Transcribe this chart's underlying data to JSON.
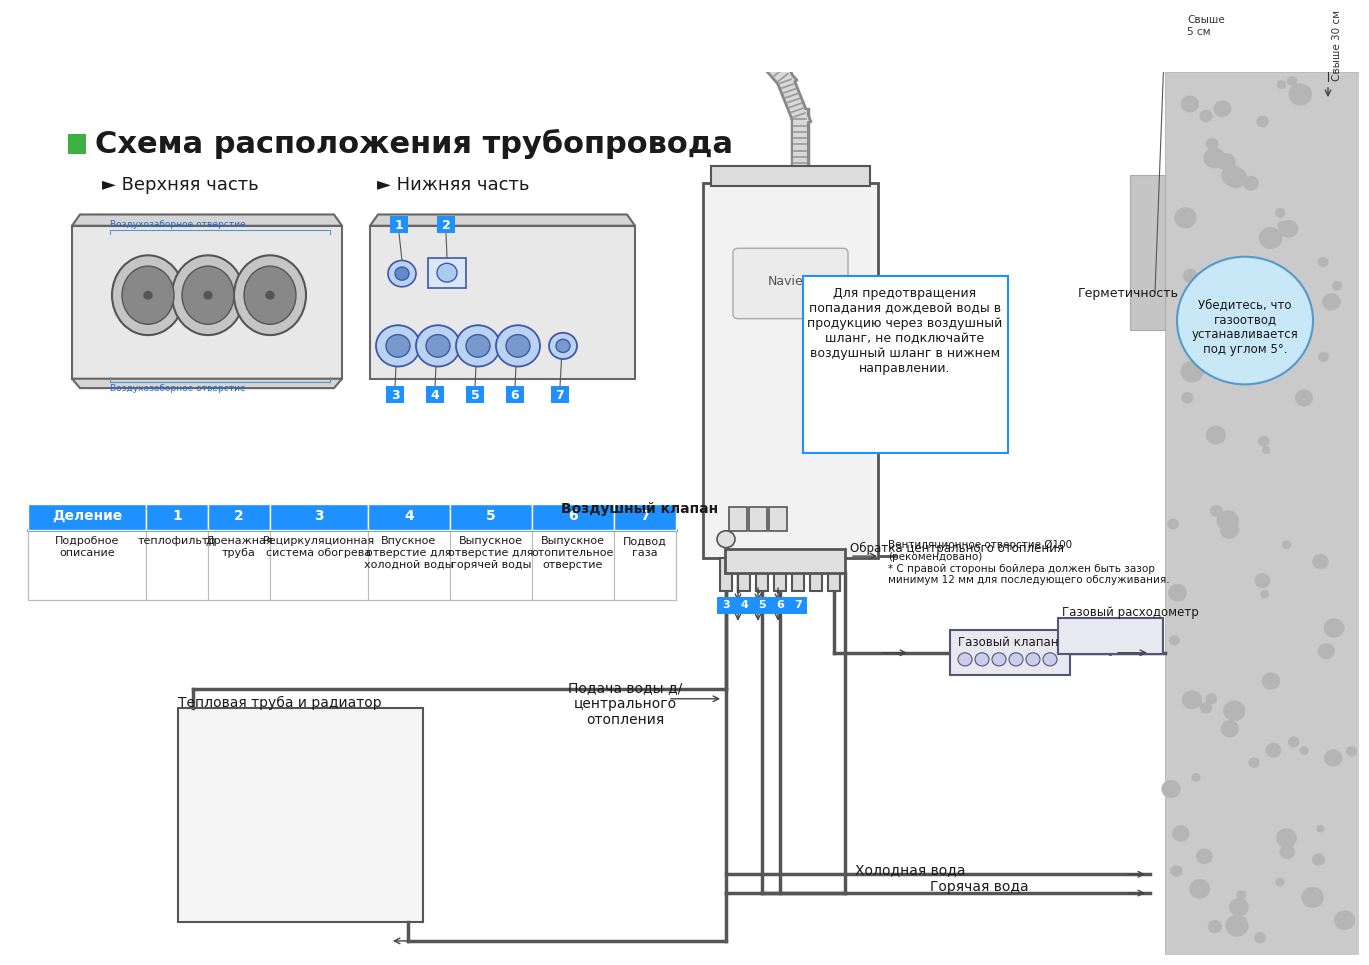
{
  "bg_color": "#ffffff",
  "title": "Схема расположения трубопровода",
  "green_square_color": "#3cb043",
  "title_color": "#1a1a1a",
  "section1": "► Верхняя часть",
  "section2": "► Нижняя часть",
  "table_headers": [
    "Деление",
    "1",
    "2",
    "3",
    "4",
    "5",
    "6",
    "7"
  ],
  "table_data": [
    "Подробное\nописание",
    "теплофильтр",
    "Дренажная\nтруба",
    "Рециркуляционная\nсистема обогрева",
    "Впускное\nотверстие для\nхолодной воды",
    "Выпускное\nотверстие для\nгорячей воды",
    "Выпускное\nотопительное\nотверстие",
    "Подвод\nгаза"
  ],
  "table_header_color": "#1e90ff",
  "label_air_valve": "Воздушный клапан",
  "label_return": "Обратка центрального отопления",
  "label_heat_pipe": "Тепловая труба и радиатор",
  "label_supply": "Подача воды д/\nцентрального\nотопления",
  "label_cold": "Холодная вода",
  "label_hot": "Горячая вода",
  "label_gas_meter": "Газовый расходометр",
  "label_gas_valve": "Газовый клапан",
  "label_seal": "Герметичность",
  "label_above5": "Свыше\n5 см",
  "label_above30": "Свыше 30 см",
  "label_vent": "Вентиляционное отверстие Ø100\n(рекомендовано)\n* С правой стороны бойлера должен быть зазор\nминимум 12 мм для последующего обслуживания.",
  "callout": "Убедитесь, что\nгазоотвод\nустанавливается\nпод углом 5°.",
  "warning": "Для предотвращения\nпопадания дождевой воды в\nпродукцию через воздушный\nшланг, не подключайте\nвоздушный шланг в нижнем\nнаправлении.",
  "label_air_top": "Воздухозаборное отверстие",
  "label_air_bot": "Воздухозаборное отверстие",
  "wall_color": "#c8c8c8",
  "boiler_color": "#f0f0f0",
  "pipe_color": "#555555",
  "highlight_blue": "#1e90ff",
  "callout_bg": "#c8e8f8",
  "warn_border": "#1e90ff"
}
